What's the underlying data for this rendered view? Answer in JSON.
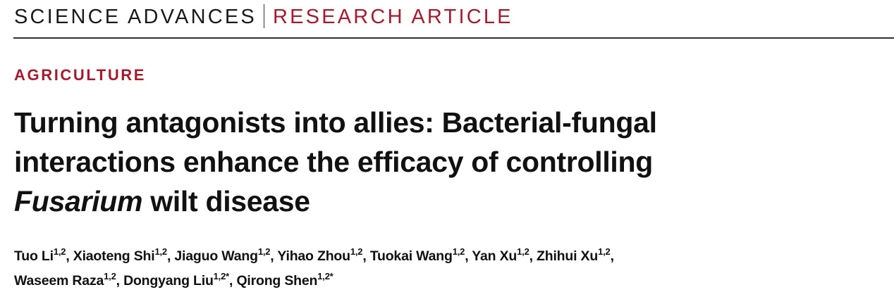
{
  "header": {
    "journal": "SCIENCE ADVANCES",
    "article_type": "RESEARCH ARTICLE"
  },
  "section": "AGRICULTURE",
  "title": {
    "line1": "Turning antagonists into allies: Bacterial-fungal",
    "line2": "interactions enhance the efficacy of controlling",
    "line3_italic": "Fusarium",
    "line3_rest": " wilt disease"
  },
  "authors": [
    {
      "name": "Tuo Li",
      "aff": "1,2",
      "sep": ", "
    },
    {
      "name": "Xiaoteng Shi",
      "aff": "1,2",
      "sep": ", "
    },
    {
      "name": "Jiaguo Wang",
      "aff": "1,2",
      "sep": ", "
    },
    {
      "name": "Yihao Zhou",
      "aff": "1,2",
      "sep": ", "
    },
    {
      "name": "Tuokai Wang",
      "aff": "1,2",
      "sep": ", "
    },
    {
      "name": "Yan Xu",
      "aff": "1,2",
      "sep": ", "
    },
    {
      "name": "Zhihui Xu",
      "aff": "1,2",
      "sep": ","
    },
    {
      "name": "Waseem Raza",
      "aff": "1,2",
      "sep": ", "
    },
    {
      "name": "Dongyang Liu",
      "aff": "1,2*",
      "sep": ", "
    },
    {
      "name": "Qirong Shen",
      "aff": "1,2*",
      "sep": ""
    }
  ],
  "colors": {
    "accent": "#a8192e",
    "text": "#111111"
  }
}
